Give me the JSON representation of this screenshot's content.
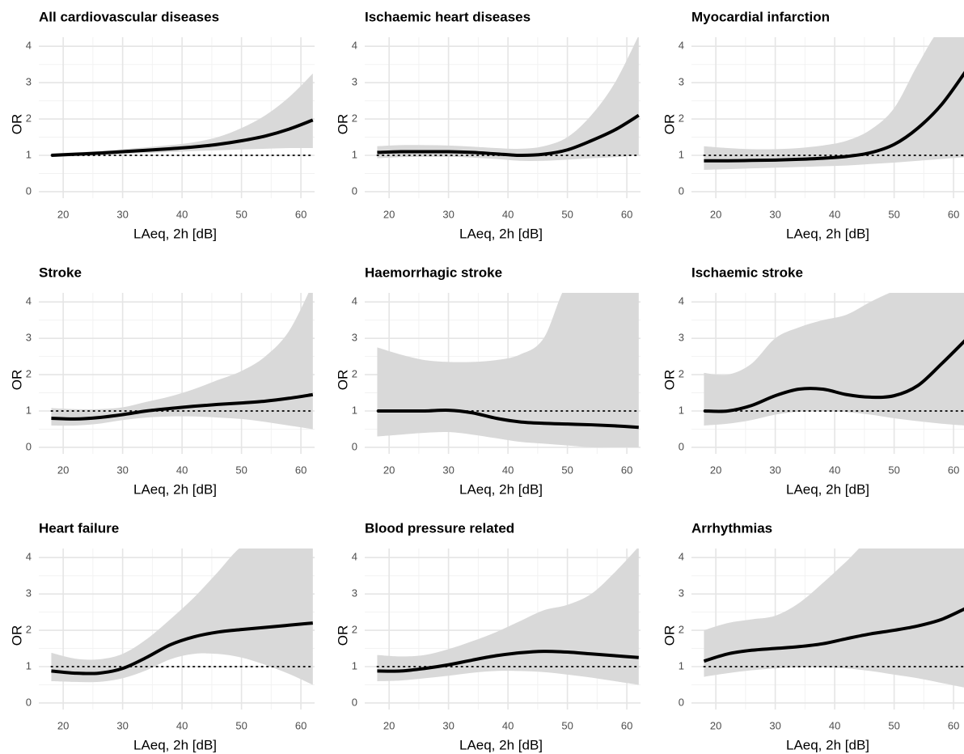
{
  "chart_data": [
    {
      "type": "line",
      "title": "All cardiovascular diseases",
      "xlabel": "LAeq, 2h [dB]",
      "ylabel": "OR",
      "x": [
        18,
        22,
        26,
        30,
        34,
        38,
        42,
        46,
        50,
        54,
        58,
        62
      ],
      "values": [
        1.0,
        1.03,
        1.06,
        1.1,
        1.14,
        1.18,
        1.23,
        1.3,
        1.4,
        1.53,
        1.72,
        1.97
      ],
      "lower": [
        0.95,
        0.98,
        1.0,
        1.03,
        1.06,
        1.09,
        1.12,
        1.14,
        1.16,
        1.18,
        1.2,
        1.2
      ],
      "upper": [
        1.05,
        1.08,
        1.12,
        1.17,
        1.22,
        1.28,
        1.36,
        1.5,
        1.75,
        2.1,
        2.6,
        3.25
      ],
      "color": "#000000",
      "band_color": "#d9d9d9",
      "reference_line": 1,
      "xlim": [
        15.9,
        62.3
      ],
      "ylim": [
        -0.18,
        4.25
      ],
      "xticks": [
        20,
        30,
        40,
        50,
        60
      ],
      "yticks": [
        0,
        1,
        2,
        3,
        4
      ],
      "xminor": [
        25,
        35,
        45,
        55
      ],
      "yminor": [
        0.5,
        1.5,
        2.5,
        3.5
      ],
      "grid": true
    },
    {
      "type": "line",
      "title": "Ischaemic heart diseases",
      "xlabel": "LAeq, 2h [dB]",
      "ylabel": "OR",
      "x": [
        18,
        22,
        26,
        30,
        34,
        38,
        42,
        46,
        50,
        54,
        58,
        62
      ],
      "values": [
        1.08,
        1.1,
        1.1,
        1.1,
        1.08,
        1.04,
        1.0,
        1.03,
        1.15,
        1.4,
        1.7,
        2.1
      ],
      "lower": [
        0.92,
        0.95,
        0.96,
        0.96,
        0.94,
        0.9,
        0.85,
        0.85,
        0.88,
        0.92,
        0.95,
        1.0
      ],
      "upper": [
        1.25,
        1.28,
        1.28,
        1.27,
        1.24,
        1.2,
        1.18,
        1.25,
        1.5,
        2.1,
        3.0,
        4.3
      ],
      "color": "#000000",
      "band_color": "#d9d9d9",
      "reference_line": 1,
      "xlim": [
        15.9,
        62.3
      ],
      "ylim": [
        -0.18,
        4.25
      ],
      "xticks": [
        20,
        30,
        40,
        50,
        60
      ],
      "yticks": [
        0,
        1,
        2,
        3,
        4
      ],
      "xminor": [
        25,
        35,
        45,
        55
      ],
      "yminor": [
        0.5,
        1.5,
        2.5,
        3.5
      ],
      "grid": true
    },
    {
      "type": "line",
      "title": "Myocardial infarction",
      "xlabel": "LAeq, 2h [dB]",
      "ylabel": "OR",
      "x": [
        18,
        22,
        26,
        30,
        34,
        38,
        42,
        46,
        50,
        54,
        58,
        62
      ],
      "values": [
        0.85,
        0.85,
        0.86,
        0.87,
        0.89,
        0.92,
        0.97,
        1.07,
        1.3,
        1.75,
        2.4,
        3.3
      ],
      "lower": [
        0.6,
        0.62,
        0.64,
        0.66,
        0.68,
        0.7,
        0.72,
        0.76,
        0.8,
        0.85,
        0.9,
        0.95
      ],
      "upper": [
        1.25,
        1.2,
        1.17,
        1.17,
        1.2,
        1.27,
        1.4,
        1.7,
        2.3,
        3.5,
        4.5,
        4.5
      ],
      "color": "#000000",
      "band_color": "#d9d9d9",
      "reference_line": 1,
      "xlim": [
        15.9,
        62.3
      ],
      "ylim": [
        -0.18,
        4.25
      ],
      "xticks": [
        20,
        30,
        40,
        50,
        60
      ],
      "yticks": [
        0,
        1,
        2,
        3,
        4
      ],
      "xminor": [
        25,
        35,
        45,
        55
      ],
      "yminor": [
        0.5,
        1.5,
        2.5,
        3.5
      ],
      "grid": true
    },
    {
      "type": "line",
      "title": "Stroke",
      "xlabel": "LAeq, 2h [dB]",
      "ylabel": "OR",
      "x": [
        18,
        22,
        26,
        30,
        34,
        38,
        42,
        46,
        50,
        54,
        58,
        62
      ],
      "values": [
        0.8,
        0.78,
        0.82,
        0.9,
        1.0,
        1.07,
        1.13,
        1.18,
        1.22,
        1.27,
        1.35,
        1.45
      ],
      "lower": [
        0.6,
        0.6,
        0.65,
        0.75,
        0.82,
        0.85,
        0.85,
        0.82,
        0.78,
        0.7,
        0.6,
        0.5
      ],
      "upper": [
        1.08,
        1.05,
        1.05,
        1.1,
        1.25,
        1.4,
        1.6,
        1.85,
        2.1,
        2.5,
        3.2,
        4.5
      ],
      "color": "#000000",
      "band_color": "#d9d9d9",
      "reference_line": 1,
      "xlim": [
        15.9,
        62.3
      ],
      "ylim": [
        -0.18,
        4.25
      ],
      "xticks": [
        20,
        30,
        40,
        50,
        60
      ],
      "yticks": [
        0,
        1,
        2,
        3,
        4
      ],
      "xminor": [
        25,
        35,
        45,
        55
      ],
      "yminor": [
        0.5,
        1.5,
        2.5,
        3.5
      ],
      "grid": true
    },
    {
      "type": "line",
      "title": "Haemorrhagic stroke",
      "xlabel": "LAeq, 2h [dB]",
      "ylabel": "OR",
      "x": [
        18,
        22,
        26,
        30,
        34,
        38,
        42,
        46,
        50,
        54,
        58,
        62
      ],
      "values": [
        1.0,
        1.0,
        1.0,
        1.02,
        0.95,
        0.8,
        0.7,
        0.66,
        0.64,
        0.62,
        0.59,
        0.55
      ],
      "lower": [
        0.3,
        0.35,
        0.4,
        0.42,
        0.35,
        0.25,
        0.15,
        0.1,
        0.05,
        0,
        0,
        0
      ],
      "upper": [
        2.75,
        2.55,
        2.4,
        2.35,
        2.35,
        2.4,
        2.55,
        3.0,
        4.5,
        4.5,
        4.5,
        4.5
      ],
      "color": "#000000",
      "band_color": "#d9d9d9",
      "reference_line": 1,
      "xlim": [
        15.9,
        62.3
      ],
      "ylim": [
        -0.18,
        4.25
      ],
      "xticks": [
        20,
        30,
        40,
        50,
        60
      ],
      "yticks": [
        0,
        1,
        2,
        3,
        4
      ],
      "xminor": [
        25,
        35,
        45,
        55
      ],
      "yminor": [
        0.5,
        1.5,
        2.5,
        3.5
      ],
      "grid": true
    },
    {
      "type": "line",
      "title": "Ischaemic stroke",
      "xlabel": "LAeq, 2h [dB]",
      "ylabel": "OR",
      "x": [
        18,
        22,
        26,
        30,
        34,
        38,
        42,
        46,
        50,
        54,
        58,
        62
      ],
      "values": [
        1.0,
        1.0,
        1.15,
        1.42,
        1.6,
        1.6,
        1.45,
        1.38,
        1.42,
        1.7,
        2.3,
        2.95
      ],
      "lower": [
        0.6,
        0.65,
        0.75,
        0.9,
        0.98,
        1.0,
        0.97,
        0.9,
        0.8,
        0.72,
        0.65,
        0.6
      ],
      "upper": [
        2.05,
        2.0,
        2.3,
        3.0,
        3.3,
        3.5,
        3.65,
        4.0,
        4.3,
        4.5,
        4.5,
        4.5
      ],
      "color": "#000000",
      "band_color": "#d9d9d9",
      "reference_line": 1,
      "xlim": [
        15.9,
        62.3
      ],
      "ylim": [
        -0.18,
        4.25
      ],
      "xticks": [
        20,
        30,
        40,
        50,
        60
      ],
      "yticks": [
        0,
        1,
        2,
        3,
        4
      ],
      "xminor": [
        25,
        35,
        45,
        55
      ],
      "yminor": [
        0.5,
        1.5,
        2.5,
        3.5
      ],
      "grid": true
    },
    {
      "type": "line",
      "title": "Heart failure",
      "xlabel": "LAeq, 2h [dB]",
      "ylabel": "OR",
      "x": [
        18,
        22,
        26,
        30,
        34,
        38,
        42,
        46,
        50,
        54,
        58,
        62
      ],
      "values": [
        0.88,
        0.82,
        0.82,
        0.95,
        1.25,
        1.6,
        1.82,
        1.95,
        2.02,
        2.08,
        2.14,
        2.2
      ],
      "lower": [
        0.6,
        0.58,
        0.58,
        0.68,
        0.9,
        1.2,
        1.35,
        1.35,
        1.25,
        1.05,
        0.8,
        0.5
      ],
      "upper": [
        1.38,
        1.22,
        1.2,
        1.35,
        1.75,
        2.3,
        2.9,
        3.6,
        4.3,
        4.5,
        4.5,
        4.5
      ],
      "color": "#000000",
      "band_color": "#d9d9d9",
      "reference_line": 1,
      "xlim": [
        15.9,
        62.3
      ],
      "ylim": [
        -0.18,
        4.25
      ],
      "xticks": [
        20,
        30,
        40,
        50,
        60
      ],
      "yticks": [
        0,
        1,
        2,
        3,
        4
      ],
      "xminor": [
        25,
        35,
        45,
        55
      ],
      "yminor": [
        0.5,
        1.5,
        2.5,
        3.5
      ],
      "grid": true
    },
    {
      "type": "line",
      "title": "Blood pressure related",
      "xlabel": "LAeq, 2h [dB]",
      "ylabel": "OR",
      "x": [
        18,
        22,
        26,
        30,
        34,
        38,
        42,
        46,
        50,
        54,
        58,
        62
      ],
      "values": [
        0.88,
        0.88,
        0.95,
        1.05,
        1.18,
        1.3,
        1.38,
        1.42,
        1.4,
        1.35,
        1.3,
        1.25
      ],
      "lower": [
        0.6,
        0.62,
        0.68,
        0.75,
        0.83,
        0.88,
        0.88,
        0.85,
        0.78,
        0.7,
        0.6,
        0.5
      ],
      "upper": [
        1.32,
        1.28,
        1.32,
        1.48,
        1.7,
        1.95,
        2.25,
        2.55,
        2.7,
        3.0,
        3.6,
        4.3
      ],
      "color": "#000000",
      "band_color": "#d9d9d9",
      "reference_line": 1,
      "xlim": [
        15.9,
        62.3
      ],
      "ylim": [
        -0.18,
        4.25
      ],
      "xticks": [
        20,
        30,
        40,
        50,
        60
      ],
      "yticks": [
        0,
        1,
        2,
        3,
        4
      ],
      "xminor": [
        25,
        35,
        45,
        55
      ],
      "yminor": [
        0.5,
        1.5,
        2.5,
        3.5
      ],
      "grid": true
    },
    {
      "type": "line",
      "title": "Arrhythmias",
      "xlabel": "LAeq, 2h [dB]",
      "ylabel": "OR",
      "x": [
        18,
        22,
        26,
        30,
        34,
        38,
        42,
        46,
        50,
        54,
        58,
        62
      ],
      "values": [
        1.15,
        1.35,
        1.45,
        1.5,
        1.55,
        1.63,
        1.77,
        1.9,
        2.0,
        2.12,
        2.3,
        2.6
      ],
      "lower": [
        0.72,
        0.82,
        0.9,
        0.95,
        0.98,
        0.98,
        0.95,
        0.88,
        0.78,
        0.68,
        0.55,
        0.42
      ],
      "upper": [
        2.0,
        2.2,
        2.3,
        2.4,
        2.75,
        3.3,
        3.9,
        4.5,
        4.5,
        4.5,
        4.5,
        4.5
      ],
      "color": "#000000",
      "band_color": "#d9d9d9",
      "reference_line": 1,
      "xlim": [
        15.9,
        62.3
      ],
      "ylim": [
        -0.18,
        4.25
      ],
      "xticks": [
        20,
        30,
        40,
        50,
        60
      ],
      "yticks": [
        0,
        1,
        2,
        3,
        4
      ],
      "xminor": [
        25,
        35,
        45,
        55
      ],
      "yminor": [
        0.5,
        1.5,
        2.5,
        3.5
      ],
      "grid": true
    }
  ]
}
